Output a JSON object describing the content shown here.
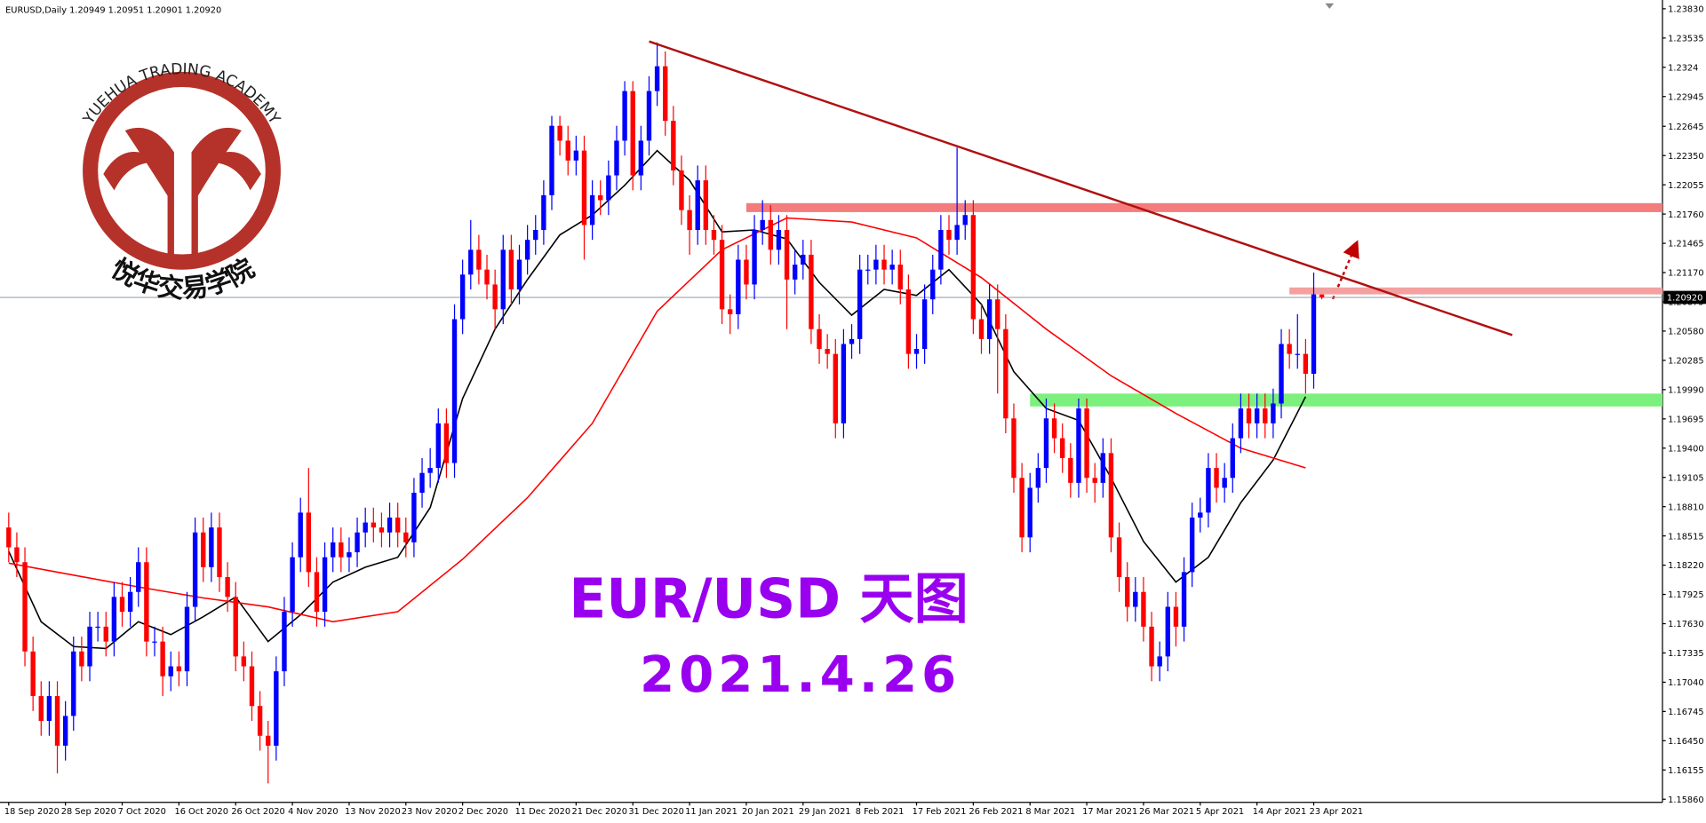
{
  "chart_data": {
    "type": "candlestick",
    "header": "EURUSD,Daily  1.20949 1.20951 1.20901 1.20920",
    "title": "EUR/USD  天图",
    "subtitle": "2021.4.26",
    "watermark": {
      "academy": "YUEHUA TRADING ACADEMY",
      "name_cn": "悦华交易学院"
    },
    "up_color": "#0000ff",
    "down_color": "#ff0000",
    "ylim": [
      1.15829,
      1.23918
    ],
    "yticks": [
      {
        "value": 1.2383,
        "label": "1.23830"
      },
      1.23535,
      1.2324,
      {
        "value": 1.22945,
        "label": "1.22945"
      },
      1.22645,
      {
        "value": 1.2235,
        "label": "1.22350"
      },
      1.22055,
      {
        "value": 1.2176,
        "label": "1.21760"
      },
      1.21465,
      {
        "value": 1.2117,
        "label": "1.21170"
      },
      1.20875,
      {
        "value": 1.2058,
        "label": "1.20580"
      },
      1.20285,
      {
        "value": 1.1999,
        "label": "1.19990"
      },
      1.19695,
      {
        "value": 1.194,
        "label": "1.19400"
      },
      1.19105,
      {
        "value": 1.1881,
        "label": "1.18810"
      },
      1.18515,
      {
        "value": 1.1822,
        "label": "1.18220"
      },
      1.17925,
      {
        "value": 1.1763,
        "label": "1.17630"
      },
      1.17335,
      {
        "value": 1.1704,
        "label": "1.17040"
      },
      1.16745,
      {
        "value": 1.1645,
        "label": "1.16450"
      },
      1.16155,
      {
        "value": 1.1586,
        "label": "1.15860"
      }
    ],
    "xticks": [
      {
        "value": 0,
        "label": "18 Sep 2020"
      },
      {
        "value": 7,
        "label": "28 Sep 2020"
      },
      {
        "value": 14,
        "label": "7 Oct 2020"
      },
      {
        "value": 21,
        "label": "16 Oct 2020"
      },
      {
        "value": 28,
        "label": "26 Oct 2020"
      },
      {
        "value": 35,
        "label": "4 Nov 2020"
      },
      {
        "value": 42,
        "label": "13 Nov 2020"
      },
      {
        "value": 49,
        "label": "23 Nov 2020"
      },
      {
        "value": 56,
        "label": "2 Dec 2020"
      },
      {
        "value": 63,
        "label": "11 Dec 2020"
      },
      {
        "value": 70,
        "label": "21 Dec 2020"
      },
      {
        "value": 77,
        "label": "31 Dec 2020"
      },
      {
        "value": 84,
        "label": "11 Jan 2021"
      },
      {
        "value": 91,
        "label": "20 Jan 2021"
      },
      {
        "value": 98,
        "label": "29 Jan 2021"
      },
      {
        "value": 105,
        "label": "8 Feb 2021"
      },
      {
        "value": 112,
        "label": "17 Feb 2021"
      },
      {
        "value": 119,
        "label": "26 Feb 2021"
      },
      {
        "value": 126,
        "label": "8 Mar 2021"
      },
      {
        "value": 133,
        "label": "17 Mar 2021"
      },
      {
        "value": 140,
        "label": "26 Mar 2021"
      },
      {
        "value": 147,
        "label": "5 Apr 2021"
      },
      {
        "value": 154,
        "label": "14 Apr 2021"
      },
      {
        "value": 161,
        "label": "23 Apr 2021"
      }
    ],
    "ohlc": [
      [
        1.186,
        1.1875,
        1.1825,
        1.184
      ],
      [
        1.184,
        1.1855,
        1.181,
        1.1825
      ],
      [
        1.1825,
        1.184,
        1.172,
        1.1735
      ],
      [
        1.1735,
        1.175,
        1.1675,
        1.169
      ],
      [
        1.169,
        1.1705,
        1.165,
        1.1665
      ],
      [
        1.1665,
        1.1705,
        1.165,
        1.169
      ],
      [
        1.169,
        1.1705,
        1.1612,
        1.164
      ],
      [
        1.164,
        1.1685,
        1.1625,
        1.167
      ],
      [
        1.167,
        1.175,
        1.1655,
        1.1735
      ],
      [
        1.1735,
        1.175,
        1.1705,
        1.172
      ],
      [
        1.172,
        1.1775,
        1.1705,
        1.176
      ],
      [
        1.176,
        1.1775,
        1.1745,
        1.176
      ],
      [
        1.176,
        1.1775,
        1.173,
        1.1745
      ],
      [
        1.1745,
        1.1805,
        1.173,
        1.179
      ],
      [
        1.179,
        1.1805,
        1.176,
        1.1775
      ],
      [
        1.1775,
        1.181,
        1.176,
        1.1795
      ],
      [
        1.1795,
        1.184,
        1.178,
        1.1825
      ],
      [
        1.1825,
        1.184,
        1.173,
        1.1745
      ],
      [
        1.1745,
        1.176,
        1.173,
        1.1745
      ],
      [
        1.1745,
        1.176,
        1.169,
        1.171
      ],
      [
        1.171,
        1.1735,
        1.1695,
        1.172
      ],
      [
        1.172,
        1.1735,
        1.17,
        1.1715
      ],
      [
        1.1715,
        1.1795,
        1.17,
        1.178
      ],
      [
        1.178,
        1.187,
        1.1765,
        1.1855
      ],
      [
        1.1855,
        1.187,
        1.1805,
        1.182
      ],
      [
        1.182,
        1.1875,
        1.1805,
        1.186
      ],
      [
        1.186,
        1.1875,
        1.1795,
        1.181
      ],
      [
        1.181,
        1.1825,
        1.1775,
        1.179
      ],
      [
        1.179,
        1.1805,
        1.1715,
        1.173
      ],
      [
        1.173,
        1.1745,
        1.1705,
        1.172
      ],
      [
        1.172,
        1.1735,
        1.1665,
        1.168
      ],
      [
        1.168,
        1.1695,
        1.1635,
        1.165
      ],
      [
        1.165,
        1.1665,
        1.1602,
        1.164
      ],
      [
        1.164,
        1.173,
        1.1625,
        1.1715
      ],
      [
        1.1715,
        1.179,
        1.17,
        1.1775
      ],
      [
        1.1775,
        1.1845,
        1.176,
        1.183
      ],
      [
        1.183,
        1.189,
        1.1815,
        1.1875
      ],
      [
        1.1875,
        1.192,
        1.18,
        1.1815
      ],
      [
        1.1815,
        1.183,
        1.176,
        1.1775
      ],
      [
        1.1775,
        1.1845,
        1.176,
        1.183
      ],
      [
        1.183,
        1.186,
        1.1815,
        1.1845
      ],
      [
        1.1845,
        1.186,
        1.1815,
        1.183
      ],
      [
        1.183,
        1.185,
        1.1815,
        1.1835
      ],
      [
        1.1835,
        1.187,
        1.182,
        1.1855
      ],
      [
        1.1855,
        1.188,
        1.184,
        1.1865
      ],
      [
        1.1865,
        1.188,
        1.1845,
        1.186
      ],
      [
        1.186,
        1.1875,
        1.184,
        1.1855
      ],
      [
        1.1855,
        1.1885,
        1.184,
        1.187
      ],
      [
        1.187,
        1.1885,
        1.184,
        1.1855
      ],
      [
        1.1855,
        1.187,
        1.183,
        1.1845
      ],
      [
        1.1845,
        1.191,
        1.183,
        1.1895
      ],
      [
        1.1895,
        1.193,
        1.188,
        1.1915
      ],
      [
        1.1915,
        1.194,
        1.19,
        1.192
      ],
      [
        1.192,
        1.198,
        1.1905,
        1.1965
      ],
      [
        1.1965,
        1.198,
        1.191,
        1.1925
      ],
      [
        1.1925,
        1.2085,
        1.191,
        1.207
      ],
      [
        1.207,
        1.213,
        1.2055,
        1.2115
      ],
      [
        1.2115,
        1.217,
        1.21,
        1.214
      ],
      [
        1.214,
        1.2155,
        1.2105,
        1.212
      ],
      [
        1.212,
        1.2135,
        1.209,
        1.2105
      ],
      [
        1.2105,
        1.212,
        1.206,
        1.208
      ],
      [
        1.208,
        1.2155,
        1.2065,
        1.214
      ],
      [
        1.214,
        1.2155,
        1.2085,
        1.21
      ],
      [
        1.21,
        1.2145,
        1.2085,
        1.213
      ],
      [
        1.213,
        1.2165,
        1.2115,
        1.215
      ],
      [
        1.215,
        1.2175,
        1.2135,
        1.216
      ],
      [
        1.216,
        1.221,
        1.2145,
        1.2195
      ],
      [
        1.2195,
        1.2275,
        1.218,
        1.2265
      ],
      [
        1.2265,
        1.2275,
        1.2235,
        1.225
      ],
      [
        1.225,
        1.2265,
        1.2215,
        1.223
      ],
      [
        1.223,
        1.2255,
        1.2215,
        1.224
      ],
      [
        1.224,
        1.2255,
        1.213,
        1.2165
      ],
      [
        1.2165,
        1.221,
        1.215,
        1.2195
      ],
      [
        1.2195,
        1.221,
        1.2175,
        1.219
      ],
      [
        1.219,
        1.223,
        1.2175,
        1.2215
      ],
      [
        1.2215,
        1.2265,
        1.22,
        1.225
      ],
      [
        1.225,
        1.231,
        1.2235,
        1.23
      ],
      [
        1.23,
        1.231,
        1.22,
        1.2215
      ],
      [
        1.2215,
        1.2265,
        1.22,
        1.225
      ],
      [
        1.225,
        1.2315,
        1.2235,
        1.23
      ],
      [
        1.23,
        1.2349,
        1.2285,
        1.2325
      ],
      [
        1.2325,
        1.234,
        1.2255,
        1.227
      ],
      [
        1.227,
        1.2285,
        1.2205,
        1.222
      ],
      [
        1.222,
        1.2235,
        1.2165,
        1.218
      ],
      [
        1.218,
        1.2195,
        1.2135,
        1.216
      ],
      [
        1.216,
        1.2225,
        1.2145,
        1.221
      ],
      [
        1.221,
        1.2225,
        1.2145,
        1.216
      ],
      [
        1.216,
        1.2175,
        1.2135,
        1.215
      ],
      [
        1.215,
        1.2165,
        1.2065,
        1.208
      ],
      [
        1.208,
        1.2095,
        1.2055,
        1.2075
      ],
      [
        1.2075,
        1.2145,
        1.206,
        1.213
      ],
      [
        1.213,
        1.2145,
        1.209,
        1.2105
      ],
      [
        1.2105,
        1.2175,
        1.209,
        1.216
      ],
      [
        1.216,
        1.219,
        1.2145,
        1.217
      ],
      [
        1.217,
        1.2185,
        1.2125,
        1.214
      ],
      [
        1.214,
        1.2175,
        1.2125,
        1.216
      ],
      [
        1.216,
        1.2175,
        1.206,
        1.211
      ],
      [
        1.211,
        1.214,
        1.2095,
        1.2125
      ],
      [
        1.2125,
        1.215,
        1.211,
        1.2135
      ],
      [
        1.2135,
        1.215,
        1.2045,
        1.206
      ],
      [
        1.206,
        1.2075,
        1.2025,
        1.204
      ],
      [
        1.204,
        1.2055,
        1.202,
        1.2035
      ],
      [
        1.2035,
        1.205,
        1.195,
        1.1965
      ],
      [
        1.1965,
        1.206,
        1.195,
        1.2045
      ],
      [
        1.2045,
        1.2065,
        1.203,
        1.205
      ],
      [
        1.205,
        1.2135,
        1.2035,
        1.212
      ],
      [
        1.212,
        1.2135,
        1.2105,
        1.212
      ],
      [
        1.212,
        1.2145,
        1.2105,
        1.213
      ],
      [
        1.213,
        1.2145,
        1.2105,
        1.212
      ],
      [
        1.212,
        1.214,
        1.2105,
        1.2125
      ],
      [
        1.2125,
        1.214,
        1.2085,
        1.21
      ],
      [
        1.21,
        1.2115,
        1.202,
        1.2035
      ],
      [
        1.2035,
        1.2055,
        1.202,
        1.204
      ],
      [
        1.204,
        1.2105,
        1.2025,
        1.209
      ],
      [
        1.209,
        1.2135,
        1.2075,
        1.212
      ],
      [
        1.212,
        1.2175,
        1.2105,
        1.216
      ],
      [
        1.216,
        1.2175,
        1.2135,
        1.215
      ],
      [
        1.215,
        1.2243,
        1.2135,
        1.2165
      ],
      [
        1.2165,
        1.219,
        1.215,
        1.2175
      ],
      [
        1.2175,
        1.219,
        1.2055,
        1.207
      ],
      [
        1.207,
        1.2085,
        1.2035,
        1.205
      ],
      [
        1.205,
        1.2105,
        1.2035,
        1.209
      ],
      [
        1.209,
        1.2105,
        1.1995,
        1.206
      ],
      [
        1.206,
        1.2075,
        1.1955,
        1.197
      ],
      [
        1.197,
        1.1985,
        1.1895,
        1.191
      ],
      [
        1.191,
        1.1925,
        1.1835,
        1.185
      ],
      [
        1.185,
        1.1915,
        1.1835,
        1.19
      ],
      [
        1.19,
        1.1935,
        1.1885,
        1.192
      ],
      [
        1.192,
        1.199,
        1.1905,
        1.197
      ],
      [
        1.197,
        1.1985,
        1.1935,
        1.195
      ],
      [
        1.195,
        1.1965,
        1.1915,
        1.193
      ],
      [
        1.193,
        1.1945,
        1.189,
        1.1905
      ],
      [
        1.1905,
        1.199,
        1.189,
        1.198
      ],
      [
        1.198,
        1.199,
        1.1895,
        1.191
      ],
      [
        1.191,
        1.1925,
        1.1885,
        1.1905
      ],
      [
        1.1905,
        1.195,
        1.189,
        1.1935
      ],
      [
        1.1935,
        1.195,
        1.1835,
        1.185
      ],
      [
        1.185,
        1.1865,
        1.1795,
        1.181
      ],
      [
        1.181,
        1.1825,
        1.1765,
        1.178
      ],
      [
        1.178,
        1.181,
        1.1765,
        1.1795
      ],
      [
        1.1795,
        1.181,
        1.1745,
        1.176
      ],
      [
        1.176,
        1.1775,
        1.1705,
        1.172
      ],
      [
        1.172,
        1.1745,
        1.1705,
        1.173
      ],
      [
        1.173,
        1.1795,
        1.1715,
        1.178
      ],
      [
        1.178,
        1.1795,
        1.174,
        1.176
      ],
      [
        1.176,
        1.183,
        1.1745,
        1.1815
      ],
      [
        1.1815,
        1.1885,
        1.18,
        1.187
      ],
      [
        1.187,
        1.189,
        1.1855,
        1.1875
      ],
      [
        1.1875,
        1.1935,
        1.186,
        1.192
      ],
      [
        1.192,
        1.1935,
        1.1885,
        1.19
      ],
      [
        1.19,
        1.1925,
        1.1885,
        1.191
      ],
      [
        1.191,
        1.1965,
        1.1895,
        1.195
      ],
      [
        1.195,
        1.1995,
        1.1935,
        1.198
      ],
      [
        1.198,
        1.1995,
        1.195,
        1.1965
      ],
      [
        1.1965,
        1.1995,
        1.195,
        1.198
      ],
      [
        1.198,
        1.1995,
        1.195,
        1.1965
      ],
      [
        1.1965,
        1.2,
        1.195,
        1.1985
      ],
      [
        1.1985,
        1.206,
        1.197,
        1.2045
      ],
      [
        1.2045,
        1.206,
        1.202,
        1.2035
      ],
      [
        1.2035,
        1.2075,
        1.202,
        1.2035
      ],
      [
        1.2035,
        1.205,
        1.1995,
        1.2015
      ],
      [
        1.2015,
        1.2117,
        1.2,
        1.2095
      ],
      [
        1.20949,
        1.20951,
        1.20901,
        1.2092
      ]
    ],
    "series": [
      {
        "color": "#000000",
        "x": [
          0,
          4,
          8,
          12,
          16,
          20,
          24,
          28,
          32,
          36,
          40,
          44,
          48,
          52,
          56,
          60,
          64,
          68,
          72,
          76,
          80,
          84,
          88,
          92,
          96,
          100,
          104,
          108,
          112,
          116,
          120,
          124,
          128,
          132,
          136,
          140,
          144,
          148,
          152,
          156,
          160
        ],
        "values": [
          1.1836,
          1.1765,
          1.174,
          1.1738,
          1.1765,
          1.1752,
          1.177,
          1.179,
          1.1745,
          1.1772,
          1.1805,
          1.182,
          1.183,
          1.188,
          1.199,
          1.206,
          1.211,
          1.2155,
          1.2175,
          1.2205,
          1.224,
          1.221,
          1.2158,
          1.216,
          1.2151,
          1.2107,
          1.2074,
          1.21,
          1.2094,
          1.212,
          1.2085,
          1.2017,
          1.198,
          1.1968,
          1.191,
          1.1846,
          1.1805,
          1.183,
          1.1885,
          1.1928,
          1.1992
        ]
      },
      {
        "color": "#ff0000",
        "x": [
          0,
          8,
          16,
          24,
          32,
          40,
          48,
          56,
          64,
          72,
          80,
          88,
          96,
          104,
          112,
          120,
          128,
          136,
          144,
          152,
          160
        ],
        "values": [
          1.1824,
          1.1812,
          1.18,
          1.1789,
          1.178,
          1.1765,
          1.1775,
          1.1828,
          1.189,
          1.1965,
          1.2078,
          1.214,
          1.2172,
          1.2168,
          1.2152,
          1.2112,
          1.206,
          1.2013,
          1.1975,
          1.194,
          1.192
        ]
      }
    ],
    "zones": [
      {
        "x": 91,
        "range": [
          1.2178,
          1.2187
        ],
        "color": "#f47c7c"
      },
      {
        "x": 158,
        "range": [
          1.2095,
          1.2102
        ],
        "color": "#f4a0a0"
      },
      {
        "x": 126,
        "range": [
          1.1982,
          1.1995
        ],
        "color": "#7cf07c"
      }
    ],
    "trendline": {
      "color": "#b01010",
      "x": [
        79,
        185.5
      ],
      "values": [
        1.235,
        1.2054
      ]
    },
    "last_price": {
      "value": 1.2092,
      "label": "1.20920"
    }
  }
}
